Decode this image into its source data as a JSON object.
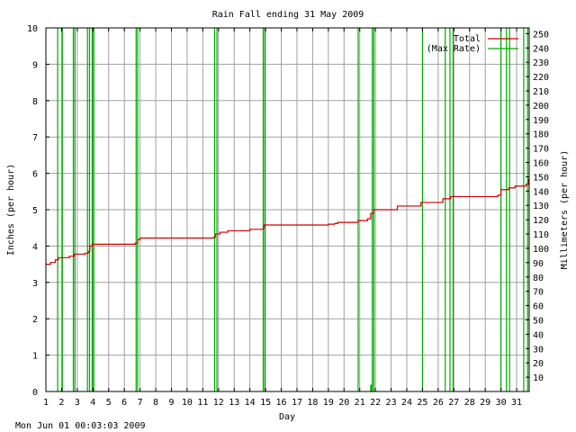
{
  "chart_data": {
    "type": "line",
    "title": "Rain Fall ending 31 May 2009",
    "xlabel": "Day",
    "ylabel_left": "Inches (per hour)",
    "ylabel_right": "Millimeters (per hour)",
    "xlim": [
      1,
      31.8
    ],
    "ylim_left": [
      0,
      10
    ],
    "ylim_right": [
      0,
      254
    ],
    "x_ticks": [
      1,
      2,
      3,
      4,
      5,
      6,
      7,
      8,
      9,
      10,
      11,
      12,
      13,
      14,
      15,
      16,
      17,
      18,
      19,
      20,
      21,
      22,
      23,
      24,
      25,
      26,
      27,
      28,
      29,
      30,
      31
    ],
    "y_ticks_left": [
      0,
      1,
      2,
      3,
      4,
      5,
      6,
      7,
      8,
      9,
      10
    ],
    "y_ticks_right": [
      10,
      20,
      30,
      40,
      50,
      60,
      70,
      80,
      90,
      100,
      110,
      120,
      130,
      140,
      150,
      160,
      170,
      180,
      190,
      200,
      210,
      220,
      230,
      240,
      250
    ],
    "grid": true,
    "legend_position": "top-right",
    "footer": "Mon Jun 01 00:03:03 2009",
    "series": [
      {
        "name": "Total",
        "color": "#cc0000",
        "points": [
          [
            1.0,
            3.5
          ],
          [
            1.3,
            3.55
          ],
          [
            1.6,
            3.62
          ],
          [
            1.8,
            3.68
          ],
          [
            2.5,
            3.72
          ],
          [
            2.8,
            3.78
          ],
          [
            3.5,
            3.8
          ],
          [
            3.7,
            3.85
          ],
          [
            3.8,
            4.0
          ],
          [
            3.95,
            4.05
          ],
          [
            6.7,
            4.08
          ],
          [
            6.85,
            4.18
          ],
          [
            7.0,
            4.22
          ],
          [
            11.7,
            4.24
          ],
          [
            11.8,
            4.33
          ],
          [
            12.1,
            4.38
          ],
          [
            12.6,
            4.42
          ],
          [
            14.0,
            4.46
          ],
          [
            14.85,
            4.5
          ],
          [
            14.9,
            4.58
          ],
          [
            19.0,
            4.6
          ],
          [
            19.4,
            4.62
          ],
          [
            19.6,
            4.65
          ],
          [
            20.9,
            4.7
          ],
          [
            21.5,
            4.75
          ],
          [
            21.7,
            4.9
          ],
          [
            21.9,
            5.0
          ],
          [
            23.4,
            5.1
          ],
          [
            24.9,
            5.2
          ],
          [
            26.3,
            5.3
          ],
          [
            26.8,
            5.36
          ],
          [
            29.8,
            5.4
          ],
          [
            30.0,
            5.55
          ],
          [
            30.5,
            5.6
          ],
          [
            30.9,
            5.65
          ],
          [
            31.6,
            5.7
          ],
          [
            31.75,
            5.85
          ]
        ]
      },
      {
        "name": "Max Rate",
        "color": "#00aa00",
        "spikes": [
          1.75,
          2.05,
          2.75,
          2.85,
          3.65,
          3.78,
          3.95,
          4.05,
          6.75,
          6.85,
          11.75,
          11.9,
          14.85,
          14.95,
          20.9,
          21.8,
          21.9,
          25.0,
          26.45,
          26.75,
          26.95,
          30.0,
          30.35,
          30.55,
          31.45,
          31.7
        ],
        "small_spikes": [
          [
            21.7,
            0.18
          ],
          [
            21.75,
            0.2
          ]
        ]
      }
    ]
  }
}
